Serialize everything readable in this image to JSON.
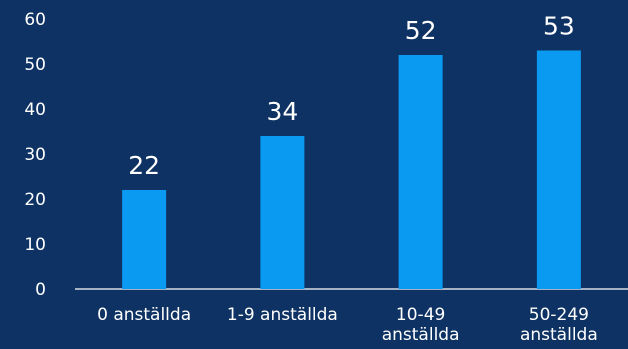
{
  "chart_data": {
    "type": "bar",
    "categories": [
      "0 anställda",
      "1-9 anställda",
      "10-49 anställda",
      "50-249 anställda"
    ],
    "category_lines": [
      [
        "0 anställda"
      ],
      [
        "1-9 anställda"
      ],
      [
        "10-49",
        "anställda"
      ],
      [
        "50-249",
        "anställda"
      ]
    ],
    "values": [
      22,
      34,
      52,
      53
    ],
    "value_labels": [
      "22",
      "34",
      "52",
      "53"
    ],
    "ylim": [
      0,
      60
    ],
    "yticks": [
      0,
      10,
      20,
      30,
      40,
      50,
      60
    ],
    "ytick_labels": [
      "0",
      "10",
      "20",
      "30",
      "40",
      "50",
      "60"
    ],
    "title": "",
    "xlabel": "",
    "ylabel": "",
    "grid": false,
    "legend": "none"
  },
  "colors": {
    "background": "#0d3263",
    "bar": "#0a9af2",
    "text": "#ffffff",
    "axis": "#ffffff"
  }
}
